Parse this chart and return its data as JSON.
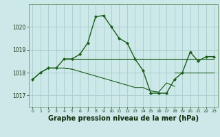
{
  "background_color": "#cce8e8",
  "grid_color": "#aacccc",
  "line_color": "#1a5c1a",
  "xlabel": "Graphe pression niveau de la mer (hPa)",
  "xlabel_fontsize": 7.0,
  "ylabel_ticks": [
    1017,
    1018,
    1019,
    1020
  ],
  "xlim": [
    -0.5,
    23.5
  ],
  "ylim": [
    1016.5,
    1021.0
  ],
  "hours": [
    0,
    1,
    2,
    3,
    4,
    5,
    6,
    7,
    8,
    9,
    10,
    11,
    12,
    13,
    14,
    15,
    16,
    17,
    18,
    19,
    20,
    21,
    22,
    23
  ],
  "series_main": [
    1017.7,
    1018.0,
    1018.2,
    1018.2,
    1018.6,
    1018.6,
    1018.8,
    1019.3,
    1020.45,
    1020.5,
    1020.0,
    1019.5,
    1019.3,
    1018.6,
    1018.1,
    1017.1,
    1017.1,
    1017.1,
    1017.7,
    1018.0,
    1018.9,
    1018.5,
    1018.7,
    1018.7
  ],
  "series_flat_upper": [
    null,
    null,
    null,
    null,
    1018.6,
    1018.6,
    1018.6,
    1018.6,
    1018.6,
    1018.6,
    1018.6,
    1018.6,
    1018.6,
    1018.6,
    1018.6,
    1018.6,
    1018.6,
    1018.6,
    1018.6,
    1018.6,
    1018.6,
    1018.6,
    1018.6,
    1018.6
  ],
  "series_early_thin": [
    1017.7,
    1018.0,
    1018.2,
    1018.2,
    1018.2,
    1018.15,
    null,
    null,
    null,
    null,
    null,
    null,
    null,
    null,
    null,
    null,
    null,
    null,
    null,
    null,
    null,
    null,
    null,
    null
  ],
  "series_low_thin": [
    null,
    null,
    null,
    null,
    1018.2,
    1018.15,
    1018.05,
    1017.95,
    1017.85,
    1017.75,
    1017.65,
    1017.55,
    1017.45,
    1017.35,
    1017.35,
    1017.2,
    1017.15,
    1017.55,
    1017.4,
    null,
    null,
    null,
    null,
    null
  ],
  "series_late_thin": [
    null,
    null,
    null,
    null,
    null,
    null,
    null,
    null,
    null,
    null,
    null,
    null,
    null,
    null,
    null,
    null,
    null,
    null,
    1018.0,
    1018.0,
    1018.0,
    1018.0,
    1018.0,
    1018.0
  ]
}
